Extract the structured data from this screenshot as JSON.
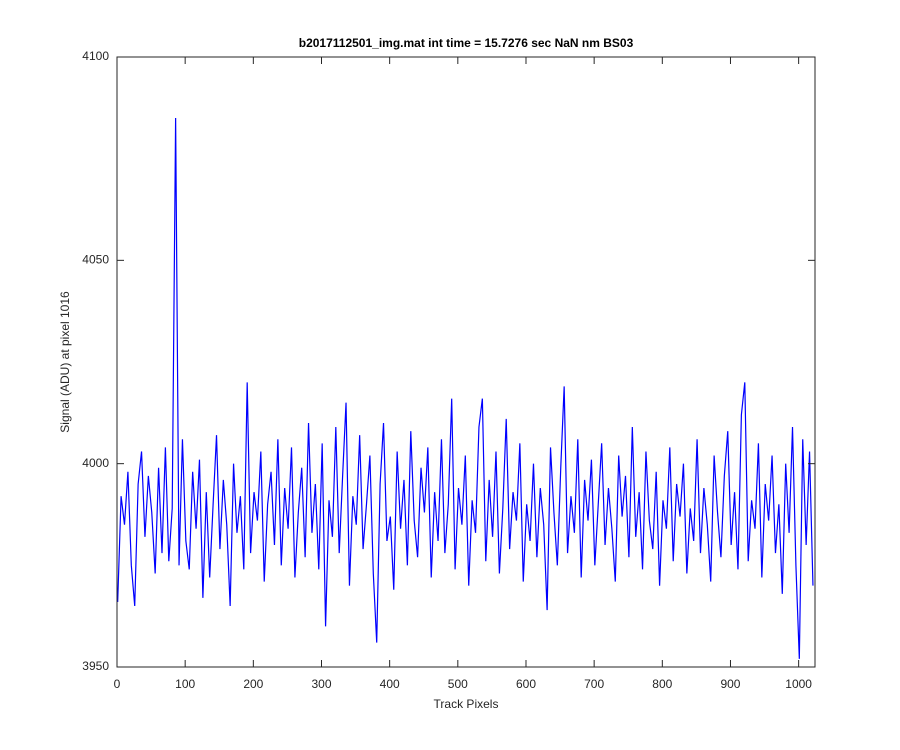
{
  "chart_data": {
    "type": "line",
    "title": "b2017112501_img.mat int time = 15.7276 sec  NaN nm BS03",
    "x_label": "Track Pixels",
    "y_label": "Signal (ADU) at pixel 1016",
    "xlim": [
      0,
      1024
    ],
    "xticks": [
      0,
      100,
      200,
      300,
      400,
      500,
      600,
      700,
      800,
      900,
      1000
    ],
    "ylim": [
      3950,
      4100
    ],
    "yticks": [
      3950,
      4000,
      4050,
      4100
    ],
    "series": [
      {
        "color": "#0000ff",
        "x": [
          1,
          6,
          11,
          16,
          21,
          26,
          31,
          36,
          41,
          46,
          51,
          56,
          61,
          66,
          71,
          76,
          81,
          86,
          91,
          96,
          101,
          106,
          111,
          116,
          121,
          126,
          131,
          136,
          141,
          146,
          151,
          156,
          161,
          166,
          171,
          176,
          181,
          186,
          191,
          196,
          201,
          206,
          211,
          216,
          221,
          226,
          231,
          236,
          241,
          246,
          251,
          256,
          261,
          266,
          271,
          276,
          281,
          286,
          291,
          296,
          301,
          306,
          311,
          316,
          321,
          326,
          331,
          336,
          341,
          346,
          351,
          356,
          361,
          366,
          371,
          376,
          381,
          386,
          391,
          396,
          401,
          406,
          411,
          416,
          421,
          426,
          431,
          436,
          441,
          446,
          451,
          456,
          461,
          466,
          471,
          476,
          481,
          486,
          491,
          496,
          501,
          506,
          511,
          516,
          521,
          526,
          531,
          536,
          541,
          546,
          551,
          556,
          561,
          566,
          571,
          576,
          581,
          586,
          591,
          596,
          601,
          606,
          611,
          616,
          621,
          626,
          631,
          636,
          641,
          646,
          651,
          656,
          661,
          666,
          671,
          676,
          681,
          686,
          691,
          696,
          701,
          706,
          711,
          716,
          721,
          726,
          731,
          736,
          741,
          746,
          751,
          756,
          761,
          766,
          771,
          776,
          781,
          786,
          791,
          796,
          801,
          806,
          811,
          816,
          821,
          826,
          831,
          836,
          841,
          846,
          851,
          856,
          861,
          866,
          871,
          876,
          881,
          886,
          891,
          896,
          901,
          906,
          911,
          916,
          921,
          926,
          931,
          936,
          941,
          946,
          951,
          956,
          961,
          966,
          971,
          976,
          981,
          986,
          991,
          996,
          1001,
          1006,
          1011,
          1016,
          1021
        ],
        "values": [
          3966,
          3992,
          3985,
          3998,
          3975,
          3965,
          3995,
          4003,
          3982,
          3997,
          3988,
          3973,
          3999,
          3978,
          4004,
          3976,
          3989,
          4085,
          3975,
          4006,
          3981,
          3974,
          3998,
          3984,
          4001,
          3967,
          3993,
          3972,
          3990,
          4007,
          3979,
          3996,
          3985,
          3965,
          4000,
          3983,
          3992,
          3974,
          4020,
          3978,
          3993,
          3986,
          4003,
          3971,
          3990,
          3998,
          3980,
          4006,
          3975,
          3994,
          3984,
          4004,
          3972,
          3988,
          3999,
          3977,
          4010,
          3983,
          3995,
          3974,
          4005,
          3960,
          3991,
          3982,
          4009,
          3978,
          3997,
          4015,
          3970,
          3992,
          3985,
          4007,
          3979,
          3990,
          4002,
          3973,
          3956,
          3995,
          4010,
          3981,
          3987,
          3969,
          4003,
          3984,
          3996,
          3975,
          4008,
          3986,
          3977,
          3999,
          3988,
          4004,
          3972,
          3993,
          3981,
          4006,
          3978,
          3990,
          4016,
          3974,
          3994,
          3985,
          4002,
          3970,
          3991,
          3983,
          4009,
          4016,
          3976,
          3996,
          3982,
          4003,
          3973,
          3989,
          4011,
          3979,
          3993,
          3986,
          4005,
          3971,
          3990,
          3981,
          4000,
          3977,
          3994,
          3985,
          3964,
          4004,
          3988,
          3975,
          3999,
          4019,
          3978,
          3992,
          3983,
          4006,
          3972,
          3996,
          3986,
          4001,
          3975,
          3990,
          4005,
          3980,
          3994,
          3984,
          3971,
          4002,
          3987,
          3997,
          3977,
          4009,
          3982,
          3993,
          3974,
          4003,
          3986,
          3979,
          3998,
          3970,
          3991,
          3984,
          4004,
          3976,
          3995,
          3987,
          4000,
          3973,
          3989,
          3981,
          4006,
          3978,
          3994,
          3985,
          3971,
          4002,
          3988,
          3977,
          3997,
          4008,
          3980,
          3993,
          3974,
          4012,
          4020,
          3976,
          3991,
          3984,
          4005,
          3972,
          3995,
          3986,
          4002,
          3978,
          3990,
          3968,
          4000,
          3983,
          4009,
          3975,
          3952,
          4006,
          3980,
          4003,
          3970
        ]
      }
    ]
  }
}
